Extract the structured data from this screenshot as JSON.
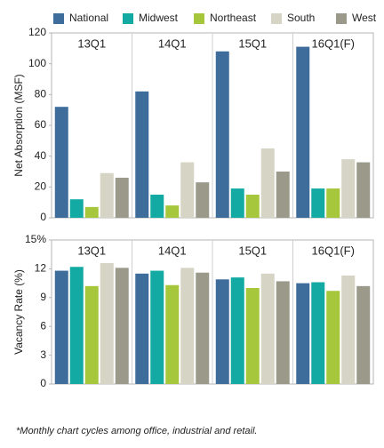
{
  "chart_data": [
    {
      "type": "bar",
      "ylabel": "Net Absorption (MSF)",
      "categories": [
        "13Q1",
        "14Q1",
        "15Q1",
        "16Q1(F)"
      ],
      "ylim": [
        0,
        120
      ],
      "yticks": [
        0,
        20,
        40,
        60,
        80,
        100,
        120
      ],
      "series": [
        {
          "name": "National",
          "color": "#3e6d9c",
          "values": [
            72,
            82,
            108,
            111
          ]
        },
        {
          "name": "Midwest",
          "color": "#14aaa4",
          "values": [
            12,
            15,
            19,
            19
          ]
        },
        {
          "name": "Northeast",
          "color": "#a6c63c",
          "values": [
            7,
            8,
            15,
            19
          ]
        },
        {
          "name": "South",
          "color": "#d6d4c4",
          "values": [
            29,
            36,
            45,
            38
          ]
        },
        {
          "name": "West",
          "color": "#9b9a8a",
          "values": [
            26,
            23,
            30,
            36
          ]
        }
      ]
    },
    {
      "type": "bar",
      "ylabel": "Vacancy Rate (%)",
      "categories": [
        "13Q1",
        "14Q1",
        "15Q1",
        "16Q1(F)"
      ],
      "ylim": [
        0,
        15
      ],
      "yticks": [
        0,
        3,
        6,
        9,
        12,
        {
          "value": 15,
          "label": "15%"
        }
      ],
      "series": [
        {
          "name": "National",
          "color": "#3e6d9c",
          "values": [
            11.8,
            11.5,
            10.9,
            10.5
          ]
        },
        {
          "name": "Midwest",
          "color": "#14aaa4",
          "values": [
            12.2,
            11.8,
            11.1,
            10.6
          ]
        },
        {
          "name": "Northeast",
          "color": "#a6c63c",
          "values": [
            10.2,
            10.3,
            10.0,
            9.7
          ]
        },
        {
          "name": "South",
          "color": "#d6d4c4",
          "values": [
            12.6,
            12.1,
            11.5,
            11.3
          ]
        },
        {
          "name": "West",
          "color": "#9b9a8a",
          "values": [
            12.1,
            11.6,
            10.7,
            10.2
          ]
        }
      ]
    }
  ],
  "footnote": "*Monthly chart cycles among office, industrial and retail."
}
